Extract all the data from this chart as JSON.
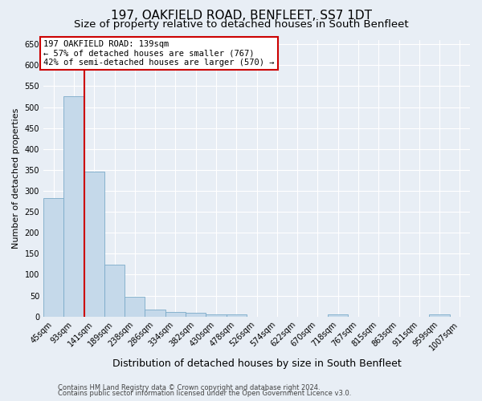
{
  "title": "197, OAKFIELD ROAD, BENFLEET, SS7 1DT",
  "subtitle": "Size of property relative to detached houses in South Benfleet",
  "xlabel": "Distribution of detached houses by size in South Benfleet",
  "ylabel": "Number of detached properties",
  "bin_labels": [
    "45sqm",
    "93sqm",
    "141sqm",
    "189sqm",
    "238sqm",
    "286sqm",
    "334sqm",
    "382sqm",
    "430sqm",
    "478sqm",
    "526sqm",
    "574sqm",
    "622sqm",
    "670sqm",
    "718sqm",
    "767sqm",
    "815sqm",
    "863sqm",
    "911sqm",
    "959sqm",
    "1007sqm"
  ],
  "bar_heights": [
    283,
    525,
    345,
    123,
    47,
    16,
    10,
    8,
    5,
    5,
    0,
    0,
    0,
    0,
    5,
    0,
    0,
    0,
    0,
    5,
    0
  ],
  "bar_color": "#c5d9ea",
  "bar_edge_color": "#7aaac8",
  "property_bin_index": 2,
  "property_label": "197 OAKFIELD ROAD: 139sqm",
  "annotation_line1": "← 57% of detached houses are smaller (767)",
  "annotation_line2": "42% of semi-detached houses are larger (570) →",
  "vline_color": "#cc0000",
  "annotation_box_facecolor": "#ffffff",
  "annotation_box_edgecolor": "#cc0000",
  "ylim": [
    0,
    660
  ],
  "yticks": [
    0,
    50,
    100,
    150,
    200,
    250,
    300,
    350,
    400,
    450,
    500,
    550,
    600,
    650
  ],
  "footer1": "Contains HM Land Registry data © Crown copyright and database right 2024.",
  "footer2": "Contains public sector information licensed under the Open Government Licence v3.0.",
  "bg_color": "#e8eef5",
  "title_fontsize": 11,
  "subtitle_fontsize": 9.5,
  "xlabel_fontsize": 9,
  "ylabel_fontsize": 8,
  "tick_fontsize": 7,
  "annotation_fontsize": 7.5,
  "footer_fontsize": 6
}
